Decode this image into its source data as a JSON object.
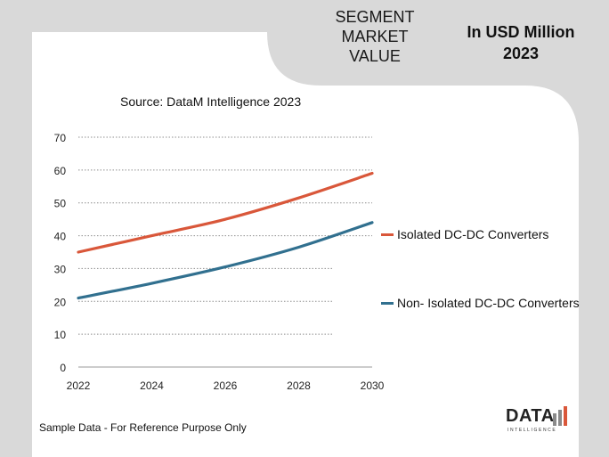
{
  "header": {
    "segment_lines": [
      "SEGMENT",
      "MARKET",
      "VALUE"
    ],
    "unit_lines": [
      "In USD Million",
      "2023"
    ]
  },
  "source": "Source: DataM Intelligence  2023",
  "footer": "Sample Data - For Reference Purpose Only",
  "logo": {
    "main": "DATA",
    "sub": "INTELLIGENCE"
  },
  "colors": {
    "isolated": "#d9573a",
    "non_isolated": "#31708f",
    "background": "#d9d9d9",
    "panel": "#ffffff",
    "logo_bars": [
      "#8a8a8a",
      "#8a8a8a",
      "#d9573a"
    ]
  },
  "chart_data": {
    "type": "line",
    "title": "",
    "xlabel": "",
    "ylabel": "",
    "xlim": [
      2022,
      2030
    ],
    "ylim": [
      0,
      70
    ],
    "x_ticks": [
      2022,
      2024,
      2026,
      2028,
      2030
    ],
    "y_ticks": [
      0,
      10,
      20,
      30,
      40,
      50,
      60,
      70
    ],
    "x_tick_labels": [
      "2022",
      "2024",
      "2026",
      "2028",
      "2030"
    ],
    "y_tick_labels": [
      "0",
      "10",
      "20",
      "30",
      "40",
      "50",
      "60",
      "70"
    ],
    "grid": true,
    "legend_position": "right",
    "x": [
      2022,
      2024,
      2026,
      2028,
      2030
    ],
    "series": [
      {
        "name": "Isolated DC-DC Converters",
        "values": [
          35,
          40,
          45,
          51.5,
          59
        ]
      },
      {
        "name": "Non- Isolated DC-DC Converters",
        "values": [
          21,
          25.5,
          30.5,
          36.5,
          44
        ]
      }
    ]
  }
}
